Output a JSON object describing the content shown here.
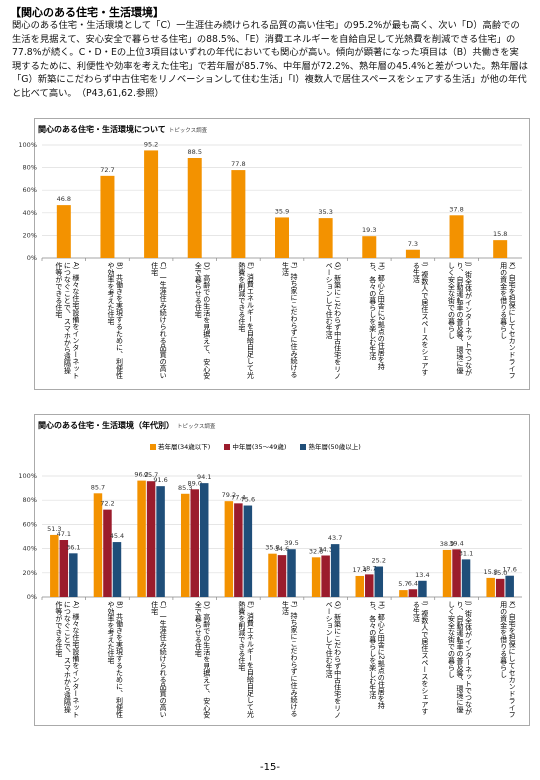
{
  "header": {
    "title": "【関心のある住宅・生活環境】",
    "body": "関心のある住宅・生活環境として「C）一生涯住み続けられる品質の高い住宅」の95.2%が最も高く、次い「D）高齢での生活を見据えて、安心安全で暮らせる住宅」の88.5%、「E）消費エネルギーを自給自足して光熱費を削減できる住宅」の77.8%が続く。C・D・Eの上位3項目はいずれの年代においても関心が高い。傾向が顕著になった項目は（B）共働きを実現するために、利便性や効率を考えた住宅」で若年層が85.7%、中年層が72.2%、熟年層の45.4%と差がついた。熟年層は「G）新築にこだわらず中古住宅をリノベーションして住む生活」「I）複数人で居住スペースをシェアする生活」が他の年代と比べて高い。　（P43,61,62.参照）"
  },
  "chart_data": [
    {
      "type": "bar",
      "title": "関心のある住宅・生活環境について",
      "subtitle": "トピックス調査",
      "categories": [
        "A）様々な住宅設備をインターネットにつなぐことで、スマホから遠隔操作等ができる住宅",
        "B）共働きを実現するために、利便性や効率を考えた住宅",
        "C）一生涯住み続けられる品質の高い住宅",
        "D）高齢での生活を見据えて、安心安全で暮らせる住宅",
        "E）消費エネルギーを自給自足して光熱費を削減できる住宅",
        "F）持ち家にこだわらずに住み続ける生活",
        "G）新築にこだわらず中古住宅をリノベーションして住む生活",
        "H）都心と田舎に2拠点の住居を持ち、各々の暮らしを楽しむ生活",
        "I）複数人で居住スペースをシェアする生活",
        "J）街全体がインターネットでつながり、自動運転車の普及等、環境に優しく安全な街での暮らし",
        "K）自宅を担保にしてセカンドライフ用の資金を借りる暮らし"
      ],
      "values": [
        46.8,
        72.7,
        95.2,
        88.5,
        77.8,
        35.9,
        35.3,
        19.3,
        7.3,
        37.8,
        15.8
      ],
      "color": "#f39200",
      "ylim": [
        0,
        100
      ],
      "yticks": [
        {
          "value": 0,
          "label": "0%"
        },
        {
          "value": 20,
          "label": "20%"
        },
        {
          "value": 40,
          "label": "40%"
        },
        {
          "value": 60,
          "label": "60%"
        },
        {
          "value": 80,
          "label": "80%"
        },
        {
          "value": 100,
          "label": "100%"
        }
      ],
      "grid": true
    },
    {
      "type": "grouped-bar",
      "title": "関心のある住宅・生活環境（年代別）",
      "subtitle": "トピックス調査",
      "categories": [
        "A）様々な住宅設備をインターネットにつなぐことで、スマホから遠隔操作等ができる住宅",
        "B）共働きを実現するために、利便性や効率を考えた住宅",
        "C）一生涯住み続けられる品質の高い住宅",
        "D）高齢での生活を見据えて、安心安全で暮らせる住宅",
        "E）消費エネルギーを自給自足して光熱費を削減できる住宅",
        "F）持ち家にこだわらずに住み続ける生活",
        "G）新築にこだわらず中古住宅をリノベーションして住む生活",
        "H）都心と田舎に2拠点の住居を持ち、各々の暮らしを楽しむ生活",
        "I）複数人で居住スペースをシェアする生活",
        "J）街全体がインターネットでつながり、自動運転車の普及等、環境に優しく安全な街での暮らし",
        "K）自宅を担保にしてセカンドライフ用の資金を借りる暮らし"
      ],
      "series": [
        {
          "name": "若年層(34歳以下)",
          "color": "#f39200",
          "values": [
            51.3,
            85.7,
            96.2,
            85.3,
            79.2,
            35.8,
            32.8,
            17.4,
            5.7,
            38.9,
            15.8
          ]
        },
        {
          "name": "中年層(35～49歳)",
          "color": "#9b1c2c",
          "values": [
            47.1,
            72.2,
            95.7,
            89,
            77.4,
            34.6,
            34.3,
            18.7,
            6.4,
            39.4,
            15
          ],
          "value_labels": [
            "47.1",
            "72.2",
            "95.7",
            "89.0",
            "77.4",
            "34.6",
            "34.3",
            "18.7",
            "6.4",
            "39.4",
            "15.0"
          ]
        },
        {
          "name": "熟年層(50歳以上)",
          "color": "#1f4e79",
          "values": [
            36.1,
            45.4,
            91.6,
            94.1,
            75.6,
            39.5,
            43.7,
            25.2,
            13.4,
            31.1,
            17.6
          ]
        }
      ],
      "ylim": [
        0,
        100
      ],
      "yticks": [
        {
          "value": 0,
          "label": "0%"
        },
        {
          "value": 20,
          "label": "20%"
        },
        {
          "value": 40,
          "label": "40%"
        },
        {
          "value": 60,
          "label": "60%"
        },
        {
          "value": 80,
          "label": "80%"
        },
        {
          "value": 100,
          "label": "100%"
        }
      ],
      "grid": true
    }
  ],
  "page_number": "-15-"
}
